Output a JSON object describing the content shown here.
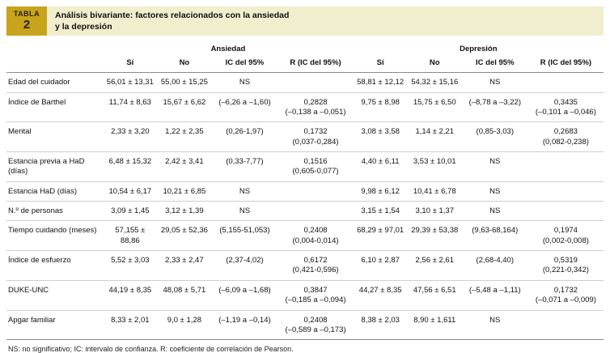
{
  "colors": {
    "tag_bg": "#c8a41c",
    "title_bg": "#f0eecd"
  },
  "table": {
    "tag": "TABLA",
    "number": "2",
    "title": "Análisis bivariante: factores relacionados con la ansiedad\ny la depresión",
    "groups": [
      "Ansiedad",
      "Depresión"
    ],
    "columns": [
      "Sí",
      "No",
      "IC del 95%",
      "R (IC del 95%)"
    ],
    "rows": [
      {
        "label": "Edad del cuidador",
        "cells": [
          "56,01 ± 13,31",
          "55,00 ± 15,25",
          "NS",
          "",
          "58,81 ± 12,12",
          "54,32 ± 15,16",
          "NS",
          ""
        ]
      },
      {
        "label": "Índice de Barthel",
        "cells": [
          "11,74 ± 8,63",
          "15,67 ± 6,62",
          "(–6,26 a –1,60)",
          "0,2828\n(–0,138 a –0,051)",
          "9,75 ± 8,98",
          "15,75 ± 6,50",
          "(–8,78 a –3,22)",
          "0,3435\n(–0,101 a –0,046)"
        ]
      },
      {
        "label": "Mental",
        "cells": [
          "2,33 ± 3,20",
          "1,22 ± 2,35",
          "(0,26-1,97)",
          "0,1732\n(0,037-0,284)",
          "3,08 ± 3,58",
          "1,14 ± 2,21",
          "(0,85-3,03)",
          "0,2683\n(0,082-0,238)"
        ]
      },
      {
        "label": "Estancia previa a HaD (días)",
        "cells": [
          "6,48 ± 15,32",
          "2,42 ± 3,41",
          "(0,33-7,77)",
          "0,1516\n(0,605-0,077)",
          "4,40 ± 6,11",
          "3,53 ± 10,01",
          "NS",
          ""
        ]
      },
      {
        "label": "Estancia HaD (días)",
        "cells": [
          "10,54 ± 6,17",
          "10,21 ± 6,85",
          "NS",
          "",
          "9,98 ± 6,12",
          "10,41 ± 6,78",
          "NS",
          ""
        ]
      },
      {
        "label": "N.º de personas",
        "cells": [
          "3,09 ± 1,45",
          "3,12 ± 1,39",
          "NS",
          "",
          "3,15 ± 1,54",
          "3,10 ± 1,37",
          "NS",
          ""
        ]
      },
      {
        "label": "Tiempo cuidando (meses)",
        "cells": [
          "57,155 ± 88,86",
          "29,05 ± 52,36",
          "(5,155-51,053)",
          "0,2408\n(0,004-0,014)",
          "68,29 ± 97,01",
          "29,39 ± 53,38",
          "(9,63-68,164)",
          "0,1974\n(0,002-0,008)"
        ]
      },
      {
        "label": "Índice de esfuerzo",
        "cells": [
          "5,52 ± 3,03",
          "2,33 ± 2,47",
          "(2,37-4,02)",
          "0,6172\n(0,421-0,596)",
          "6,10 ± 2,87",
          "2,56 ± 2,61",
          "(2,68-4,40)",
          "0,5319\n(0,221-0,342)"
        ]
      },
      {
        "label": "DUKE-UNC",
        "cells": [
          "44,19 ± 8,35",
          "48,08 ± 5,71",
          "(–6,09 a –1,68)",
          "0,3847\n(–0,185 a –0,094)",
          "44,27 ± 8,35",
          "47,56 ± 6,51",
          "(–5,48 a –1,11)",
          "0,1732\n(–0,071 a –0,009)"
        ]
      },
      {
        "label": "Apgar familiar",
        "cells": [
          "8,33 ± 2,01",
          "9,0 ± 1,28",
          "(–1,19 a –0,14)",
          "0,2408\n(–0,589 a –0,173)",
          "8,38 ± 2,03",
          "8,90 ± 1,611",
          "NS",
          ""
        ]
      }
    ],
    "footnote": "NS: no significativo; IC: intervalo de confianza. R: coeficiente de correlación de Pearson."
  }
}
